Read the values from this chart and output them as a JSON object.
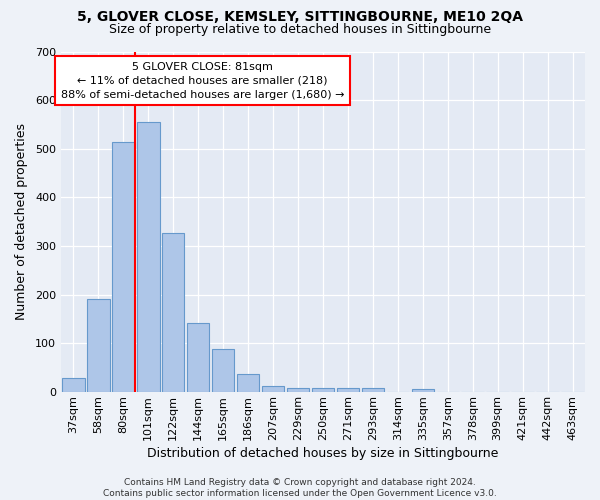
{
  "title": "5, GLOVER CLOSE, KEMSLEY, SITTINGBOURNE, ME10 2QA",
  "subtitle": "Size of property relative to detached houses in Sittingbourne",
  "xlabel": "Distribution of detached houses by size in Sittingbourne",
  "ylabel": "Number of detached properties",
  "categories": [
    "37sqm",
    "58sqm",
    "80sqm",
    "101sqm",
    "122sqm",
    "144sqm",
    "165sqm",
    "186sqm",
    "207sqm",
    "229sqm",
    "250sqm",
    "271sqm",
    "293sqm",
    "314sqm",
    "335sqm",
    "357sqm",
    "378sqm",
    "399sqm",
    "421sqm",
    "442sqm",
    "463sqm"
  ],
  "values": [
    30,
    192,
    515,
    555,
    328,
    143,
    88,
    38,
    13,
    8,
    8,
    8,
    8,
    0,
    7,
    0,
    0,
    0,
    0,
    0,
    0
  ],
  "bar_color": "#aec6e8",
  "bar_edge_color": "#6699cc",
  "vline_x_index": 2,
  "vline_color": "red",
  "annotation_text": "5 GLOVER CLOSE: 81sqm\n← 11% of detached houses are smaller (218)\n88% of semi-detached houses are larger (1,680) →",
  "annotation_box_color": "white",
  "annotation_box_edge_color": "red",
  "ylim": [
    0,
    700
  ],
  "yticks": [
    0,
    100,
    200,
    300,
    400,
    500,
    600,
    700
  ],
  "footer": "Contains HM Land Registry data © Crown copyright and database right 2024.\nContains public sector information licensed under the Open Government Licence v3.0.",
  "bg_color": "#eef2f8",
  "plot_bg_color": "#e4eaf4",
  "title_fontsize": 10,
  "subtitle_fontsize": 9,
  "xlabel_fontsize": 9,
  "ylabel_fontsize": 9,
  "tick_fontsize": 8,
  "ann_fontsize": 8
}
